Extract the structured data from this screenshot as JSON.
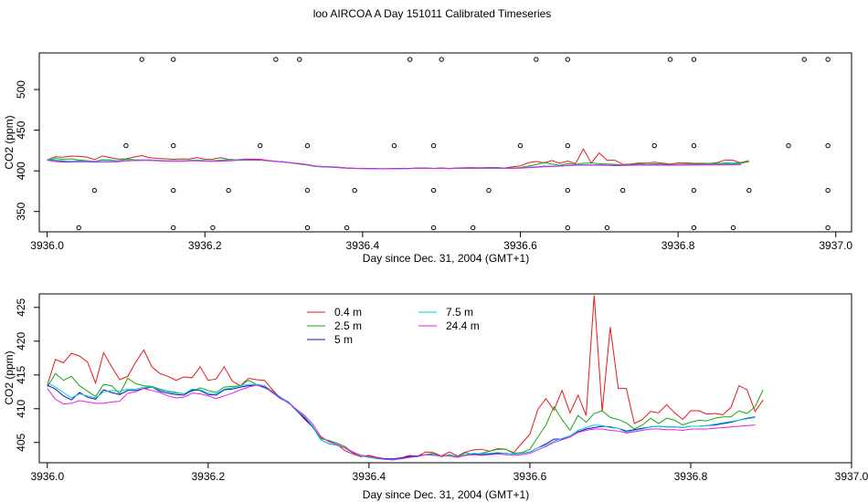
{
  "figure": {
    "title": "loo AIRCOA A  Day 151011  Calibrated Timeseries"
  },
  "chart_data": [
    {
      "type": "scatter+line",
      "xlabel": "Day since Dec. 31, 2004 (GMT+1)",
      "ylabel": "CO2 (ppm)",
      "xlim": [
        3935.99,
        3937.02
      ],
      "ylim": [
        325,
        545
      ],
      "xticks": [
        "3936.0",
        "3936.2",
        "3936.4",
        "3936.6",
        "3936.8",
        "3937.0"
      ],
      "yticks": [
        "350",
        "400",
        "450",
        "500"
      ],
      "points_y537": [
        3936.12,
        3936.16,
        3936.29,
        3936.32,
        3936.46,
        3936.5,
        3936.62,
        3936.66,
        3936.79,
        3936.82,
        3936.96,
        3936.99
      ],
      "points_y431": [
        3936.1,
        3936.16,
        3936.27,
        3936.33,
        3936.44,
        3936.49,
        3936.6,
        3936.66,
        3936.77,
        3936.82,
        3936.94,
        3936.99
      ],
      "points_y376": [
        3936.06,
        3936.16,
        3936.23,
        3936.33,
        3936.39,
        3936.49,
        3936.56,
        3936.66,
        3936.73,
        3936.82,
        3936.89,
        3936.99
      ],
      "points_y330": [
        3936.04,
        3936.16,
        3936.21,
        3936.33,
        3936.38,
        3936.49,
        3936.54,
        3936.66,
        3936.71,
        3936.82,
        3936.87,
        3936.99
      ]
    },
    {
      "type": "line",
      "xlabel": "Day since Dec. 31, 2004 (GMT+1)",
      "ylabel": "CO2 (ppm)",
      "xlim": [
        3935.99,
        3937.0
      ],
      "ylim": [
        402,
        427
      ],
      "xticks": [
        "3936.0",
        "3936.2",
        "3936.4",
        "3936.6",
        "3936.8",
        "3937.0"
      ],
      "yticks": [
        "405",
        "410",
        "415",
        "420",
        "425"
      ],
      "legend_position": "top-left",
      "x_start": 3936.0,
      "x_step": 0.01,
      "series": [
        {
          "name": "0.4 m",
          "color": "#e41a1c",
          "values": [
            413.5,
            417.3,
            416.8,
            418.2,
            417.8,
            416.9,
            413.8,
            418.3,
            416.2,
            414.3,
            414.8,
            416.9,
            418.7,
            416.2,
            415.2,
            414.8,
            414.2,
            414.7,
            414.6,
            416.2,
            414.2,
            414.4,
            416.2,
            414.1,
            413.4,
            414.5,
            414.3,
            414.2,
            412.8,
            411.6,
            411.0,
            409.8,
            408.4,
            407.3,
            405.7,
            405.2,
            404.7,
            403.8,
            403.3,
            402.9,
            403.1,
            402.8,
            402.6,
            402.5,
            402.7,
            403.1,
            402.9,
            403.6,
            403.5,
            403.0,
            403.6,
            403.0,
            403.6,
            403.9,
            404.0,
            403.7,
            404.1,
            404.0,
            403.5,
            404.9,
            406.2,
            409.9,
            411.5,
            409.8,
            412.7,
            409.4,
            412.0,
            409.0,
            426.8,
            409.6,
            422.1,
            413.0,
            413.0,
            407.8,
            408.4,
            409.6,
            409.4,
            410.6,
            409.4,
            408.4,
            409.7,
            409.7,
            409.2,
            409.3,
            409.1,
            410.2,
            413.4,
            412.8,
            409.6,
            411.3
          ]
        },
        {
          "name": "2.5 m",
          "color": "#17a717",
          "values": [
            413.2,
            415.2,
            414.2,
            414.8,
            413.4,
            412.6,
            411.8,
            413.6,
            413.4,
            412.2,
            414.5,
            413.7,
            413.4,
            413.3,
            412.9,
            412.6,
            412.4,
            412.2,
            412.6,
            413.1,
            412.7,
            412.4,
            413.2,
            413.3,
            413.4,
            414.2,
            413.6,
            413.4,
            412.4,
            411.6,
            411.0,
            409.8,
            408.6,
            407.3,
            405.6,
            405.3,
            404.9,
            404.4,
            403.5,
            403.0,
            402.9,
            402.7,
            402.6,
            402.6,
            402.7,
            402.9,
            403.0,
            403.2,
            403.4,
            402.9,
            403.2,
            402.9,
            403.5,
            403.2,
            403.4,
            403.7,
            404.0,
            404.0,
            403.4,
            403.5,
            404.0,
            405.8,
            407.6,
            410.3,
            408.4,
            406.8,
            409.0,
            408.0,
            409.3,
            409.7,
            408.7,
            408.4,
            407.9,
            407.0,
            407.6,
            408.6,
            407.8,
            408.6,
            408.3,
            407.6,
            408.0,
            408.3,
            408.2,
            408.6,
            408.8,
            408.8,
            409.7,
            409.3,
            410.3,
            412.8
          ]
        },
        {
          "name": "5 m",
          "color": "#1010c8",
          "values": [
            413.5,
            412.9,
            411.9,
            411.3,
            412.4,
            411.7,
            411.4,
            412.8,
            412.4,
            412.1,
            412.7,
            412.7,
            413.0,
            413.2,
            412.6,
            412.3,
            412.1,
            412.0,
            412.8,
            412.7,
            412.1,
            412.0,
            412.8,
            412.9,
            413.2,
            413.4,
            413.5,
            413.2,
            412.4,
            411.5,
            410.9,
            409.7,
            408.6,
            407.3,
            405.4,
            404.8,
            404.6,
            404.2,
            403.5,
            403.1,
            402.9,
            402.7,
            402.6,
            402.6,
            402.7,
            402.9,
            403.0,
            403.2,
            403.2,
            403.0,
            403.1,
            402.9,
            403.1,
            403.3,
            403.2,
            403.3,
            403.4,
            403.4,
            403.3,
            403.4,
            403.6,
            404.2,
            404.8,
            405.5,
            405.5,
            405.8,
            406.6,
            407.0,
            407.2,
            407.4,
            407.3,
            407.1,
            406.7,
            406.9,
            407.1,
            407.3,
            407.4,
            407.3,
            407.3,
            407.2,
            407.4,
            407.4,
            407.5,
            407.6,
            407.8,
            408.0,
            408.3,
            408.6,
            408.8
          ]
        },
        {
          "name": "7.5 m",
          "color": "#00d1d1",
          "values": [
            413.9,
            413.2,
            412.4,
            411.6,
            412.2,
            411.9,
            411.6,
            412.5,
            412.7,
            412.6,
            412.9,
            412.9,
            413.2,
            413.2,
            412.8,
            412.5,
            412.3,
            412.2,
            412.9,
            412.8,
            412.3,
            412.2,
            412.9,
            413.1,
            413.4,
            413.6,
            413.6,
            413.4,
            412.6,
            411.7,
            411.0,
            409.8,
            408.8,
            407.4,
            405.4,
            404.8,
            404.6,
            404.2,
            403.6,
            403.0,
            402.8,
            402.6,
            402.5,
            402.5,
            402.6,
            402.8,
            402.9,
            403.2,
            403.2,
            403.0,
            403.1,
            402.9,
            403.2,
            403.4,
            403.3,
            403.4,
            403.5,
            403.4,
            403.3,
            403.4,
            403.6,
            404.2,
            404.6,
            405.2,
            405.6,
            406.0,
            406.8,
            407.2,
            407.6,
            407.5,
            407.2,
            407.1,
            406.5,
            406.8,
            407.0,
            407.3,
            407.4,
            407.3,
            407.3,
            407.2,
            407.4,
            407.4,
            407.5,
            407.7,
            407.9,
            408.1,
            408.3,
            408.5,
            408.7
          ]
        },
        {
          "name": "24.4 m",
          "color": "#e81ee8",
          "values": [
            413.0,
            411.4,
            410.7,
            410.8,
            411.2,
            411.0,
            410.8,
            410.8,
            411.0,
            411.1,
            412.3,
            412.5,
            413.0,
            412.7,
            412.4,
            411.9,
            411.6,
            411.7,
            412.3,
            412.2,
            411.9,
            411.5,
            411.9,
            412.3,
            412.8,
            413.2,
            413.5,
            413.1,
            412.5,
            411.6,
            410.8,
            409.9,
            409.0,
            407.7,
            405.9,
            405.1,
            404.7,
            404.2,
            403.6,
            403.1,
            402.9,
            402.7,
            402.5,
            402.4,
            402.6,
            402.8,
            402.9,
            403.2,
            403.1,
            403.0,
            403.0,
            402.8,
            403.1,
            403.2,
            403.1,
            403.2,
            403.3,
            403.2,
            403.1,
            403.2,
            403.4,
            403.9,
            404.4,
            405.0,
            405.4,
            405.8,
            406.5,
            406.8,
            407.0,
            407.0,
            406.8,
            406.7,
            406.4,
            406.6,
            406.8,
            407.0,
            407.0,
            406.9,
            406.9,
            406.8,
            407.0,
            407.0,
            407.0,
            407.1,
            407.2,
            407.3,
            407.4,
            407.5,
            407.6
          ]
        }
      ]
    }
  ]
}
